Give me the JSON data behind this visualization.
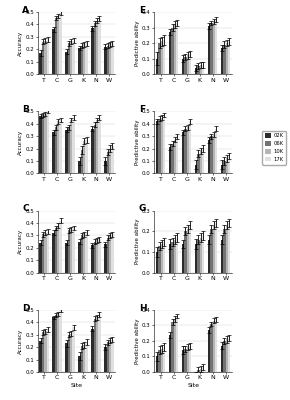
{
  "sites": [
    "T",
    "C",
    "G",
    "K",
    "N",
    "W"
  ],
  "legend_labels": [
    "02K",
    "06K",
    "10K",
    "17K"
  ],
  "bar_colors": [
    "#2b2b2b",
    "#737373",
    "#b5b5b5",
    "#e0e0e0"
  ],
  "panel_labels": [
    "A",
    "B",
    "C",
    "D",
    "E",
    "F",
    "G",
    "H"
  ],
  "left_ylabel": "Accuracy",
  "right_ylabel": "Predictive ability",
  "xlabel": "Site",
  "panels": {
    "A": {
      "ylim": [
        0.0,
        0.5
      ],
      "yticks": [
        0.0,
        0.1,
        0.2,
        0.3,
        0.4,
        0.5
      ],
      "values": [
        [
          0.17,
          0.26,
          0.27,
          0.28
        ],
        [
          0.36,
          0.45,
          0.47,
          0.49
        ],
        [
          0.18,
          0.25,
          0.26,
          0.27
        ],
        [
          0.21,
          0.23,
          0.24,
          0.25
        ],
        [
          0.37,
          0.41,
          0.43,
          0.45
        ],
        [
          0.22,
          0.23,
          0.24,
          0.25
        ]
      ],
      "errors": [
        [
          0.025,
          0.02,
          0.02,
          0.02
        ],
        [
          0.02,
          0.015,
          0.015,
          0.015
        ],
        [
          0.02,
          0.02,
          0.02,
          0.02
        ],
        [
          0.02,
          0.02,
          0.02,
          0.02
        ],
        [
          0.02,
          0.02,
          0.02,
          0.02
        ],
        [
          0.02,
          0.02,
          0.02,
          0.02
        ]
      ]
    },
    "B": {
      "ylim": [
        0.0,
        0.5
      ],
      "yticks": [
        0.0,
        0.1,
        0.2,
        0.3,
        0.4,
        0.5
      ],
      "values": [
        [
          0.46,
          0.47,
          0.48,
          0.5
        ],
        [
          0.33,
          0.37,
          0.42,
          0.43
        ],
        [
          0.35,
          0.37,
          0.43,
          0.45
        ],
        [
          0.1,
          0.19,
          0.26,
          0.27
        ],
        [
          0.36,
          0.39,
          0.43,
          0.45
        ],
        [
          0.1,
          0.17,
          0.2,
          0.22
        ]
      ],
      "errors": [
        [
          0.015,
          0.015,
          0.015,
          0.015
        ],
        [
          0.02,
          0.02,
          0.02,
          0.02
        ],
        [
          0.02,
          0.02,
          0.02,
          0.02
        ],
        [
          0.03,
          0.03,
          0.025,
          0.025
        ],
        [
          0.02,
          0.02,
          0.02,
          0.02
        ],
        [
          0.03,
          0.025,
          0.025,
          0.025
        ]
      ]
    },
    "C": {
      "ylim": [
        0.0,
        0.5
      ],
      "yticks": [
        0.0,
        0.1,
        0.2,
        0.3,
        0.4,
        0.5
      ],
      "values": [
        [
          0.24,
          0.31,
          0.32,
          0.33
        ],
        [
          0.32,
          0.36,
          0.38,
          0.42
        ],
        [
          0.24,
          0.34,
          0.35,
          0.36
        ],
        [
          0.25,
          0.3,
          0.31,
          0.32
        ],
        [
          0.22,
          0.25,
          0.26,
          0.27
        ],
        [
          0.23,
          0.28,
          0.3,
          0.31
        ]
      ],
      "errors": [
        [
          0.02,
          0.02,
          0.02,
          0.02
        ],
        [
          0.02,
          0.02,
          0.02,
          0.02
        ],
        [
          0.02,
          0.02,
          0.02,
          0.02
        ],
        [
          0.02,
          0.02,
          0.02,
          0.02
        ],
        [
          0.02,
          0.02,
          0.02,
          0.02
        ],
        [
          0.02,
          0.02,
          0.02,
          0.02
        ]
      ]
    },
    "D": {
      "ylim": [
        0.0,
        0.5
      ],
      "yticks": [
        0.0,
        0.1,
        0.2,
        0.3,
        0.4,
        0.5
      ],
      "values": [
        [
          0.25,
          0.32,
          0.33,
          0.34
        ],
        [
          0.44,
          0.46,
          0.47,
          0.5
        ],
        [
          0.23,
          0.3,
          0.31,
          0.36
        ],
        [
          0.13,
          0.21,
          0.22,
          0.24
        ],
        [
          0.35,
          0.43,
          0.44,
          0.46
        ],
        [
          0.2,
          0.24,
          0.25,
          0.26
        ]
      ],
      "errors": [
        [
          0.02,
          0.02,
          0.02,
          0.02
        ],
        [
          0.015,
          0.015,
          0.015,
          0.015
        ],
        [
          0.025,
          0.02,
          0.02,
          0.02
        ],
        [
          0.03,
          0.025,
          0.025,
          0.025
        ],
        [
          0.02,
          0.02,
          0.02,
          0.02
        ],
        [
          0.025,
          0.02,
          0.02,
          0.02
        ]
      ]
    },
    "E": {
      "ylim": [
        0.0,
        0.4
      ],
      "yticks": [
        0.0,
        0.1,
        0.2,
        0.3,
        0.4
      ],
      "values": [
        [
          0.1,
          0.2,
          0.21,
          0.22
        ],
        [
          0.27,
          0.3,
          0.32,
          0.33
        ],
        [
          0.1,
          0.11,
          0.12,
          0.13
        ],
        [
          0.04,
          0.05,
          0.06,
          0.06
        ],
        [
          0.31,
          0.33,
          0.34,
          0.35
        ],
        [
          0.17,
          0.19,
          0.2,
          0.21
        ]
      ],
      "errors": [
        [
          0.04,
          0.03,
          0.03,
          0.03
        ],
        [
          0.02,
          0.02,
          0.02,
          0.02
        ],
        [
          0.025,
          0.02,
          0.02,
          0.02
        ],
        [
          0.02,
          0.02,
          0.02,
          0.02
        ],
        [
          0.02,
          0.015,
          0.015,
          0.015
        ],
        [
          0.02,
          0.02,
          0.02,
          0.02
        ]
      ]
    },
    "F": {
      "ylim": [
        0.0,
        0.5
      ],
      "yticks": [
        0.0,
        0.1,
        0.2,
        0.3,
        0.4,
        0.5
      ],
      "values": [
        [
          0.42,
          0.44,
          0.45,
          0.47
        ],
        [
          0.21,
          0.24,
          0.27,
          0.3
        ],
        [
          0.33,
          0.36,
          0.37,
          0.42
        ],
        [
          0.07,
          0.16,
          0.18,
          0.2
        ],
        [
          0.27,
          0.3,
          0.31,
          0.36
        ],
        [
          0.07,
          0.1,
          0.12,
          0.14
        ]
      ],
      "errors": [
        [
          0.02,
          0.02,
          0.02,
          0.015
        ],
        [
          0.025,
          0.02,
          0.02,
          0.02
        ],
        [
          0.02,
          0.02,
          0.02,
          0.02
        ],
        [
          0.035,
          0.03,
          0.025,
          0.025
        ],
        [
          0.025,
          0.02,
          0.02,
          0.02
        ],
        [
          0.035,
          0.03,
          0.025,
          0.025
        ]
      ]
    },
    "G": {
      "ylim": [
        0.0,
        0.3
      ],
      "yticks": [
        0.0,
        0.1,
        0.2,
        0.3
      ],
      "values": [
        [
          0.1,
          0.13,
          0.14,
          0.15
        ],
        [
          0.14,
          0.15,
          0.16,
          0.17
        ],
        [
          0.14,
          0.2,
          0.21,
          0.23
        ],
        [
          0.14,
          0.16,
          0.17,
          0.18
        ],
        [
          0.16,
          0.21,
          0.23,
          0.24
        ],
        [
          0.16,
          0.21,
          0.23,
          0.24
        ]
      ],
      "errors": [
        [
          0.025,
          0.02,
          0.02,
          0.02
        ],
        [
          0.025,
          0.02,
          0.02,
          0.02
        ],
        [
          0.02,
          0.02,
          0.02,
          0.02
        ],
        [
          0.025,
          0.02,
          0.02,
          0.02
        ],
        [
          0.02,
          0.02,
          0.02,
          0.02
        ],
        [
          0.02,
          0.02,
          0.02,
          0.02
        ]
      ]
    },
    "H": {
      "ylim": [
        0.0,
        0.4
      ],
      "yticks": [
        0.0,
        0.1,
        0.2,
        0.3,
        0.4
      ],
      "values": [
        [
          0.1,
          0.14,
          0.15,
          0.16
        ],
        [
          0.24,
          0.32,
          0.34,
          0.36
        ],
        [
          0.14,
          0.15,
          0.16,
          0.17
        ],
        [
          -0.02,
          0.01,
          0.02,
          0.03
        ],
        [
          0.27,
          0.31,
          0.33,
          0.34
        ],
        [
          0.17,
          0.2,
          0.21,
          0.22
        ]
      ],
      "errors": [
        [
          0.03,
          0.025,
          0.025,
          0.025
        ],
        [
          0.02,
          0.02,
          0.02,
          0.015
        ],
        [
          0.025,
          0.02,
          0.02,
          0.02
        ],
        [
          0.02,
          0.02,
          0.02,
          0.02
        ],
        [
          0.02,
          0.015,
          0.015,
          0.015
        ],
        [
          0.025,
          0.02,
          0.02,
          0.02
        ]
      ]
    }
  }
}
